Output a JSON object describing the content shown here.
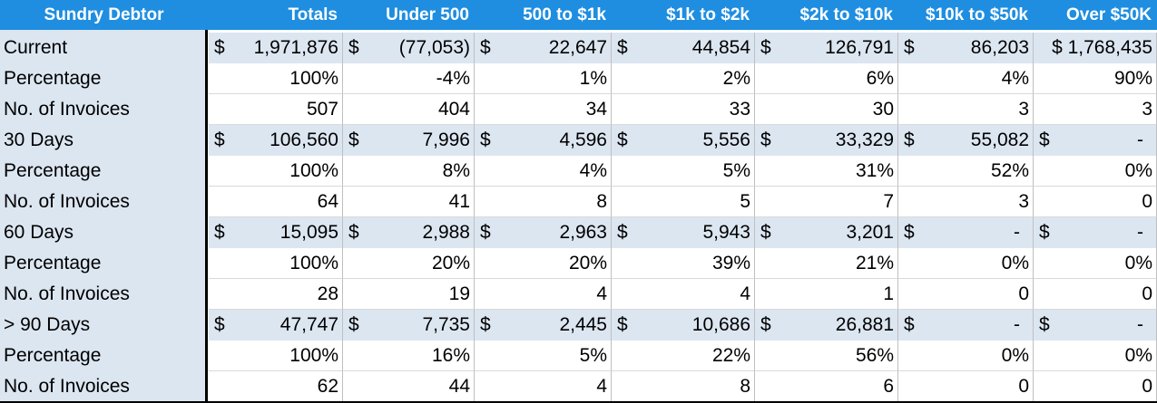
{
  "header": {
    "columns": [
      "Sundry Debtor",
      "Totals",
      "Under 500",
      "500 to $1k",
      "$1k to $2k",
      "$2k to $10k",
      "$10k to $50k",
      "Over $50K"
    ]
  },
  "colors": {
    "header_bg": "#1f8ee0",
    "header_text": "#ffffff",
    "shade_bg": "#dce6f1"
  },
  "rows": [
    {
      "label": "Current",
      "currency": true,
      "cells": [
        {
          "sym": "$",
          "val": "1,971,876"
        },
        {
          "sym": "$",
          "val": "(77,053)"
        },
        {
          "sym": "$",
          "val": "22,647"
        },
        {
          "sym": "$",
          "val": "44,854"
        },
        {
          "sym": "$",
          "val": "126,791"
        },
        {
          "sym": "$",
          "val": "86,203"
        },
        {
          "sym": "",
          "val": "$ 1,768,435"
        }
      ]
    },
    {
      "label": "Percentage",
      "currency": false,
      "cells": [
        {
          "val": "100%"
        },
        {
          "val": "-4%"
        },
        {
          "val": "1%"
        },
        {
          "val": "2%"
        },
        {
          "val": "6%"
        },
        {
          "val": "4%"
        },
        {
          "val": "90%"
        }
      ]
    },
    {
      "label": "No. of Invoices",
      "currency": false,
      "cells": [
        {
          "val": "507"
        },
        {
          "val": "404"
        },
        {
          "val": "34"
        },
        {
          "val": "33"
        },
        {
          "val": "30"
        },
        {
          "val": "3"
        },
        {
          "val": "3"
        }
      ]
    },
    {
      "label": "30 Days",
      "currency": true,
      "cells": [
        {
          "sym": "$",
          "val": "106,560"
        },
        {
          "sym": "$",
          "val": "7,996"
        },
        {
          "sym": "$",
          "val": "4,596"
        },
        {
          "sym": "$",
          "val": "5,556"
        },
        {
          "sym": "$",
          "val": "33,329"
        },
        {
          "sym": "$",
          "val": "55,082"
        },
        {
          "sym": "$",
          "val": "-"
        }
      ]
    },
    {
      "label": "Percentage",
      "currency": false,
      "cells": [
        {
          "val": "100%"
        },
        {
          "val": "8%"
        },
        {
          "val": "4%"
        },
        {
          "val": "5%"
        },
        {
          "val": "31%"
        },
        {
          "val": "52%"
        },
        {
          "val": "0%"
        }
      ]
    },
    {
      "label": "No. of Invoices",
      "currency": false,
      "cells": [
        {
          "val": "64"
        },
        {
          "val": "41"
        },
        {
          "val": "8"
        },
        {
          "val": "5"
        },
        {
          "val": "7"
        },
        {
          "val": "3"
        },
        {
          "val": "0"
        }
      ]
    },
    {
      "label": "60 Days",
      "currency": true,
      "cells": [
        {
          "sym": "$",
          "val": "15,095"
        },
        {
          "sym": "$",
          "val": "2,988"
        },
        {
          "sym": "$",
          "val": "2,963"
        },
        {
          "sym": "$",
          "val": "5,943"
        },
        {
          "sym": "$",
          "val": "3,201"
        },
        {
          "sym": "$",
          "val": "-"
        },
        {
          "sym": "$",
          "val": "-"
        }
      ]
    },
    {
      "label": "Percentage",
      "currency": false,
      "cells": [
        {
          "val": "100%"
        },
        {
          "val": "20%"
        },
        {
          "val": "20%"
        },
        {
          "val": "39%"
        },
        {
          "val": "21%"
        },
        {
          "val": "0%"
        },
        {
          "val": "0%"
        }
      ]
    },
    {
      "label": "No. of Invoices",
      "currency": false,
      "cells": [
        {
          "val": "28"
        },
        {
          "val": "19"
        },
        {
          "val": "4"
        },
        {
          "val": "4"
        },
        {
          "val": "1"
        },
        {
          "val": "0"
        },
        {
          "val": "0"
        }
      ]
    },
    {
      "label": "> 90 Days",
      "currency": true,
      "cells": [
        {
          "sym": "$",
          "val": "47,747"
        },
        {
          "sym": "$",
          "val": "7,735"
        },
        {
          "sym": "$",
          "val": "2,445"
        },
        {
          "sym": "$",
          "val": "10,686"
        },
        {
          "sym": "$",
          "val": "26,881"
        },
        {
          "sym": "$",
          "val": "-"
        },
        {
          "sym": "$",
          "val": "-"
        }
      ]
    },
    {
      "label": "Percentage",
      "currency": false,
      "cells": [
        {
          "val": "100%"
        },
        {
          "val": "16%"
        },
        {
          "val": "5%"
        },
        {
          "val": "22%"
        },
        {
          "val": "56%"
        },
        {
          "val": "0%"
        },
        {
          "val": "0%"
        }
      ]
    },
    {
      "label": "No. of Invoices",
      "currency": false,
      "cells": [
        {
          "val": "62"
        },
        {
          "val": "44"
        },
        {
          "val": "4"
        },
        {
          "val": "8"
        },
        {
          "val": "6"
        },
        {
          "val": "0"
        },
        {
          "val": "0"
        }
      ]
    }
  ]
}
